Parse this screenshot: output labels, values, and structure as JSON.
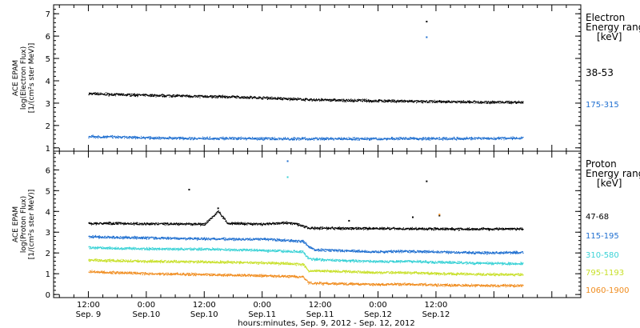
{
  "chart_data": [
    {
      "type": "scatter",
      "panel": "electron",
      "ylabel_lines": [
        "ACE EPAM",
        "log(Electron Flux)",
        "[1/(cm²s ster MeV)]"
      ],
      "ylim": [
        0.85,
        7.4
      ],
      "yticks": [
        1,
        2,
        3,
        4,
        5,
        6,
        7
      ],
      "legend_title": [
        "Electron",
        "Energy range",
        "[keV]"
      ],
      "series": [
        {
          "name": "38-53",
          "color": "#000000",
          "values": [
            [
              0,
              3.42
            ],
            [
              0.25,
              3.38
            ],
            [
              0.5,
              3.35
            ],
            [
              0.75,
              3.33
            ],
            [
              1.0,
              3.3
            ],
            [
              1.25,
              3.27
            ],
            [
              1.5,
              3.24
            ],
            [
              1.75,
              3.18
            ],
            [
              2.0,
              3.14
            ],
            [
              2.25,
              3.12
            ],
            [
              2.5,
              3.1
            ],
            [
              2.75,
              3.08
            ],
            [
              3.0,
              3.06
            ],
            [
              3.25,
              3.05
            ],
            [
              3.5,
              3.04
            ],
            [
              3.75,
              3.04
            ]
          ],
          "spikes": [
            [
              2.92,
              6.65
            ]
          ]
        },
        {
          "name": "175-315",
          "color": "#1f6fd0",
          "values": [
            [
              0,
              1.5
            ],
            [
              0.25,
              1.48
            ],
            [
              0.5,
              1.45
            ],
            [
              0.75,
              1.43
            ],
            [
              1.0,
              1.42
            ],
            [
              1.25,
              1.42
            ],
            [
              1.5,
              1.41
            ],
            [
              1.75,
              1.4
            ],
            [
              2.0,
              1.4
            ],
            [
              2.25,
              1.4
            ],
            [
              2.5,
              1.4
            ],
            [
              2.75,
              1.42
            ],
            [
              3.0,
              1.4
            ],
            [
              3.25,
              1.42
            ],
            [
              3.5,
              1.42
            ],
            [
              3.75,
              1.44
            ]
          ],
          "spikes": [
            [
              2.92,
              5.95
            ]
          ]
        }
      ]
    },
    {
      "type": "scatter",
      "panel": "proton",
      "ylabel_lines": [
        "ACE EPAM",
        "log(Proton Flux)",
        "[1/(cm²s ster MeV)]"
      ],
      "ylim": [
        -0.15,
        6.9
      ],
      "yticks": [
        0,
        1,
        2,
        3,
        4,
        5,
        6
      ],
      "legend_title": [
        "Proton",
        "Energy range",
        "[keV]"
      ],
      "series": [
        {
          "name": "47-68",
          "color": "#000000",
          "values": [
            [
              0,
              3.42
            ],
            [
              0.25,
              3.42
            ],
            [
              0.5,
              3.4
            ],
            [
              0.75,
              3.4
            ],
            [
              1.0,
              3.38
            ],
            [
              1.12,
              4.0
            ],
            [
              1.2,
              3.42
            ],
            [
              1.5,
              3.38
            ],
            [
              1.7,
              3.45
            ],
            [
              1.8,
              3.38
            ],
            [
              1.9,
              3.2
            ],
            [
              2.25,
              3.18
            ],
            [
              2.5,
              3.18
            ],
            [
              2.75,
              3.16
            ],
            [
              3.0,
              3.16
            ],
            [
              3.25,
              3.15
            ],
            [
              3.5,
              3.15
            ],
            [
              3.75,
              3.16
            ]
          ],
          "spikes": [
            [
              0.87,
              5.05
            ],
            [
              1.12,
              4.15
            ],
            [
              2.25,
              3.55
            ],
            [
              2.8,
              3.72
            ],
            [
              2.92,
              5.45
            ],
            [
              3.03,
              3.8
            ]
          ]
        },
        {
          "name": "115-195",
          "color": "#1f6fd0",
          "values": [
            [
              0,
              2.78
            ],
            [
              0.25,
              2.75
            ],
            [
              0.5,
              2.72
            ],
            [
              0.75,
              2.7
            ],
            [
              1.0,
              2.68
            ],
            [
              1.25,
              2.66
            ],
            [
              1.5,
              2.66
            ],
            [
              1.7,
              2.6
            ],
            [
              1.85,
              2.55
            ],
            [
              1.9,
              2.3
            ],
            [
              1.95,
              2.15
            ],
            [
              2.25,
              2.1
            ],
            [
              2.5,
              2.05
            ],
            [
              2.75,
              2.08
            ],
            [
              3.0,
              2.05
            ],
            [
              3.25,
              2.02
            ],
            [
              3.5,
              2.0
            ],
            [
              3.75,
              2.02
            ]
          ],
          "spikes": [
            [
              1.72,
              6.42
            ]
          ]
        },
        {
          "name": "310-580",
          "color": "#3ad2d6",
          "values": [
            [
              0,
              2.25
            ],
            [
              0.25,
              2.22
            ],
            [
              0.5,
              2.2
            ],
            [
              0.75,
              2.18
            ],
            [
              1.0,
              2.18
            ],
            [
              1.25,
              2.15
            ],
            [
              1.5,
              2.12
            ],
            [
              1.85,
              2.05
            ],
            [
              1.9,
              1.7
            ],
            [
              2.25,
              1.62
            ],
            [
              2.5,
              1.58
            ],
            [
              2.75,
              1.6
            ],
            [
              3.0,
              1.55
            ],
            [
              3.25,
              1.52
            ],
            [
              3.5,
              1.5
            ],
            [
              3.75,
              1.48
            ]
          ],
          "spikes": [
            [
              1.72,
              5.65
            ]
          ]
        },
        {
          "name": "795-1193",
          "color": "#c8e02a",
          "values": [
            [
              0,
              1.65
            ],
            [
              0.25,
              1.62
            ],
            [
              0.5,
              1.6
            ],
            [
              0.75,
              1.58
            ],
            [
              1.0,
              1.56
            ],
            [
              1.25,
              1.55
            ],
            [
              1.5,
              1.52
            ],
            [
              1.85,
              1.45
            ],
            [
              1.9,
              1.15
            ],
            [
              2.25,
              1.1
            ],
            [
              2.5,
              1.05
            ],
            [
              2.75,
              1.05
            ],
            [
              3.0,
              1.0
            ],
            [
              3.25,
              0.98
            ],
            [
              3.5,
              0.96
            ],
            [
              3.75,
              0.95
            ]
          ]
        },
        {
          "name": "1060-1900",
          "color": "#f08c1e",
          "values": [
            [
              0,
              1.1
            ],
            [
              0.25,
              1.05
            ],
            [
              0.5,
              1.0
            ],
            [
              0.75,
              0.98
            ],
            [
              1.0,
              0.96
            ],
            [
              1.25,
              0.93
            ],
            [
              1.5,
              0.9
            ],
            [
              1.85,
              0.85
            ],
            [
              1.9,
              0.55
            ],
            [
              2.25,
              0.5
            ],
            [
              2.5,
              0.48
            ],
            [
              2.75,
              0.5
            ],
            [
              3.0,
              0.45
            ],
            [
              3.25,
              0.44
            ],
            [
              3.5,
              0.42
            ],
            [
              3.75,
              0.42
            ]
          ],
          "spikes": [
            [
              3.03,
              3.85
            ]
          ]
        }
      ]
    }
  ],
  "x_axis": {
    "xlim": [
      -0.3,
      4.25
    ],
    "ticks": [
      {
        "x": 0,
        "time": "12:00",
        "date": "Sep. 9"
      },
      {
        "x": 0.5,
        "time": "0:00",
        "date": "Sep.10"
      },
      {
        "x": 1.0,
        "time": "12:00",
        "date": "Sep.10"
      },
      {
        "x": 1.5,
        "time": "0:00",
        "date": "Sep.11"
      },
      {
        "x": 2.0,
        "time": "12:00",
        "date": "Sep.11"
      },
      {
        "x": 2.5,
        "time": "0:00",
        "date": "Sep.12"
      },
      {
        "x": 3.0,
        "time": "12:00",
        "date": "Sep.12"
      }
    ],
    "xlabel": "hours:minutes, Sep.  9, 2012 - Sep. 12, 2012"
  }
}
